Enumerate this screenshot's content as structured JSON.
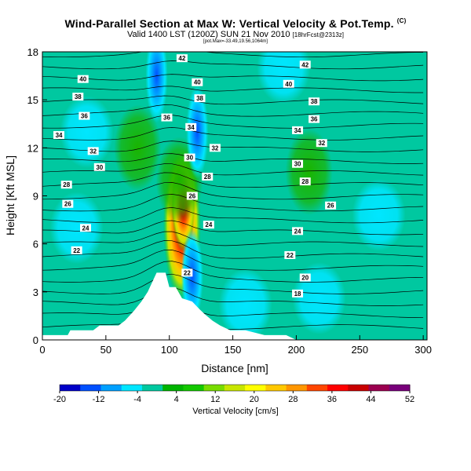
{
  "chart_data": {
    "type": "heatmap",
    "title": "Wind-Parallel Section at Max W: Vertical Velocity & Pot.Temp.",
    "title_mark": "(C)",
    "subtitle": "Valid 1400 LST (1200Z) SUN 21 Nov 2010",
    "subtitle_small": "[18hrFcst@2313z]",
    "subsubtitle": "[pot.Max=-33.49,19.56,1064m]",
    "xlabel": "Distance [nm]",
    "ylabel": "Height [Kft MSL]",
    "xlim": [
      0,
      303
    ],
    "ylim": [
      0,
      18
    ],
    "x_ticks": [
      0,
      50,
      100,
      150,
      200,
      250,
      300
    ],
    "y_ticks": [
      0,
      3,
      6,
      9,
      12,
      15,
      18
    ],
    "colorbar": {
      "label": "Vertical Velocity [cm/s]",
      "tick_labels": [
        "-20",
        "-12",
        "-4",
        "4",
        "12",
        "20",
        "28",
        "36",
        "44",
        "52"
      ],
      "bounds": [
        -20,
        52
      ],
      "colors": [
        "#0000c8",
        "#0050ff",
        "#00a0ff",
        "#00e6ff",
        "#00c8a0",
        "#00b400",
        "#14c800",
        "#78dc00",
        "#c8e600",
        "#ffff00",
        "#ffc800",
        "#ff9600",
        "#ff4600",
        "#ff0000",
        "#c80000",
        "#9b0050",
        "#78007a"
      ]
    },
    "terrain_profile_nm_kft": [
      [
        0,
        0.3
      ],
      [
        20,
        0.3
      ],
      [
        22,
        0.6
      ],
      [
        40,
        0.6
      ],
      [
        45,
        0.9
      ],
      [
        60,
        0.9
      ],
      [
        65,
        1.2
      ],
      [
        72,
        1.8
      ],
      [
        78,
        2.4
      ],
      [
        83,
        3.0
      ],
      [
        90,
        4.2
      ],
      [
        97,
        4.2
      ],
      [
        100,
        3.3
      ],
      [
        105,
        3.3
      ],
      [
        110,
        2.6
      ],
      [
        118,
        2.4
      ],
      [
        124,
        1.9
      ],
      [
        128,
        1.6
      ],
      [
        134,
        1.2
      ],
      [
        140,
        0.9
      ],
      [
        148,
        0.6
      ],
      [
        160,
        0.6
      ],
      [
        175,
        0.3
      ],
      [
        192,
        0.3
      ],
      [
        200,
        0
      ],
      [
        303,
        0
      ]
    ],
    "w_features_cm_s": [
      {
        "x": 110,
        "y": 7.2,
        "w": 48
      },
      {
        "x": 111,
        "y": 8.4,
        "w": 30
      },
      {
        "x": 108,
        "y": 10.0,
        "w": 10
      },
      {
        "x": 90,
        "y": 16.5,
        "w": -18
      },
      {
        "x": 122,
        "y": 13.0,
        "w": -14
      },
      {
        "x": 118,
        "y": 4.0,
        "w": -10
      },
      {
        "x": 27,
        "y": 7.0,
        "w": -4
      },
      {
        "x": 35,
        "y": 13.0,
        "w": -4
      },
      {
        "x": 160,
        "y": 2.2,
        "w": -4
      },
      {
        "x": 218,
        "y": 2.6,
        "w": -4
      },
      {
        "x": 265,
        "y": 7.8,
        "w": -4
      },
      {
        "x": 190,
        "y": 17.0,
        "w": -4
      },
      {
        "x": 75,
        "y": 12.0,
        "w": 10
      },
      {
        "x": 210,
        "y": 10.5,
        "w": 8
      }
    ],
    "theta_contour_labels": [
      {
        "label": "42",
        "x": 110,
        "y": 17.6
      },
      {
        "label": "42",
        "x": 207,
        "y": 17.2
      },
      {
        "label": "40",
        "x": 32,
        "y": 16.3
      },
      {
        "label": "40",
        "x": 122,
        "y": 16.1
      },
      {
        "label": "40",
        "x": 194,
        "y": 16.0
      },
      {
        "label": "38",
        "x": 28,
        "y": 15.2
      },
      {
        "label": "38",
        "x": 124,
        "y": 15.1
      },
      {
        "label": "38",
        "x": 214,
        "y": 14.9
      },
      {
        "label": "36",
        "x": 33,
        "y": 14.0
      },
      {
        "label": "36",
        "x": 98,
        "y": 13.9
      },
      {
        "label": "36",
        "x": 214,
        "y": 13.8
      },
      {
        "label": "34",
        "x": 13,
        "y": 12.8
      },
      {
        "label": "34",
        "x": 117,
        "y": 13.3
      },
      {
        "label": "34",
        "x": 201,
        "y": 13.1
      },
      {
        "label": "32",
        "x": 40,
        "y": 11.8
      },
      {
        "label": "32",
        "x": 136,
        "y": 12.0
      },
      {
        "label": "32",
        "x": 220,
        "y": 12.3
      },
      {
        "label": "30",
        "x": 45,
        "y": 10.8
      },
      {
        "label": "30",
        "x": 116,
        "y": 11.4
      },
      {
        "label": "30",
        "x": 201,
        "y": 11.0
      },
      {
        "label": "28",
        "x": 19,
        "y": 9.7
      },
      {
        "label": "28",
        "x": 130,
        "y": 10.2
      },
      {
        "label": "28",
        "x": 207,
        "y": 9.9
      },
      {
        "label": "26",
        "x": 20,
        "y": 8.5
      },
      {
        "label": "26",
        "x": 118,
        "y": 9.0
      },
      {
        "label": "26",
        "x": 227,
        "y": 8.4
      },
      {
        "label": "24",
        "x": 34,
        "y": 7.0
      },
      {
        "label": "24",
        "x": 131,
        "y": 7.2
      },
      {
        "label": "24",
        "x": 201,
        "y": 6.8
      },
      {
        "label": "22",
        "x": 27,
        "y": 5.6
      },
      {
        "label": "22",
        "x": 114,
        "y": 4.2
      },
      {
        "label": "22",
        "x": 195,
        "y": 5.3
      },
      {
        "label": "20",
        "x": 207,
        "y": 3.9
      },
      {
        "label": "18",
        "x": 201,
        "y": 2.9
      }
    ]
  }
}
